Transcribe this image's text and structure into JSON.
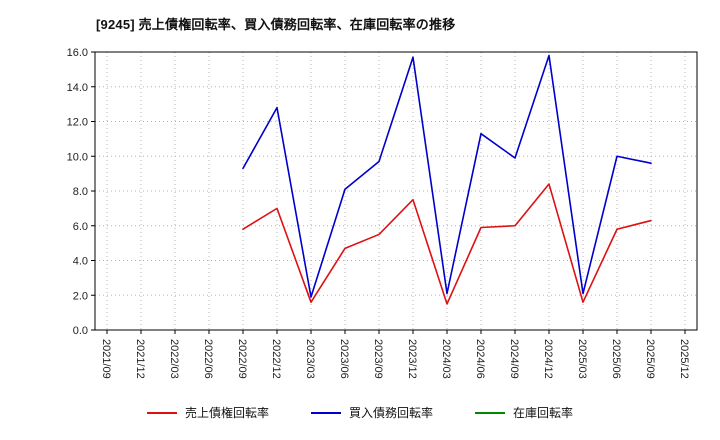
{
  "chart_data": {
    "type": "line",
    "title": "[9245]  売上債権回転率、買入債務回転率、在庫回転率の推移",
    "xlabel": "",
    "ylabel": "",
    "ylim": [
      0.0,
      16.0
    ],
    "ytick_step": 2.0,
    "ytick_labels": [
      "0.0",
      "2.0",
      "4.0",
      "6.0",
      "8.0",
      "10.0",
      "12.0",
      "14.0",
      "16.0"
    ],
    "grid": true,
    "legend_position": "bottom",
    "x_labels": [
      "2021/09",
      "2021/12",
      "2022/03",
      "2022/06",
      "2022/09",
      "2022/12",
      "2023/03",
      "2023/06",
      "2023/09",
      "2023/12",
      "2024/03",
      "2024/06",
      "2024/09",
      "2024/12",
      "2025/03",
      "2025/06",
      "2025/09",
      "2025/12"
    ],
    "series": [
      {
        "name": "売上債権回転率",
        "color": "#dd1111",
        "values": [
          null,
          null,
          null,
          null,
          5.8,
          7.0,
          1.6,
          4.7,
          5.5,
          7.5,
          1.5,
          5.9,
          6.0,
          8.4,
          1.6,
          5.8,
          6.3,
          null
        ]
      },
      {
        "name": "買入債務回転率",
        "color": "#0000cc",
        "values": [
          null,
          null,
          null,
          null,
          9.3,
          12.8,
          1.9,
          8.1,
          9.7,
          15.7,
          2.1,
          11.3,
          9.9,
          15.8,
          2.1,
          10.0,
          9.6,
          null
        ]
      },
      {
        "name": "在庫回転率",
        "color": "#008800",
        "values": [
          null,
          null,
          null,
          null,
          null,
          null,
          null,
          null,
          null,
          null,
          null,
          null,
          null,
          null,
          null,
          null,
          null,
          null
        ]
      }
    ]
  }
}
